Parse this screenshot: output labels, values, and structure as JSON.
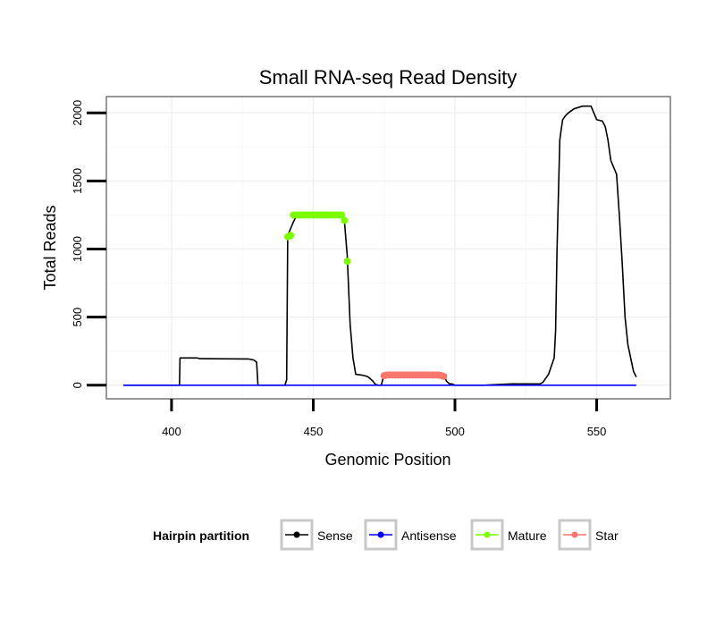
{
  "chart_data": {
    "type": "line",
    "title": "Small RNA-seq Read Density",
    "xlabel": "Genomic Position",
    "ylabel": "Total Reads",
    "xlim": [
      377,
      576
    ],
    "ylim": [
      -100,
      2120
    ],
    "xticks": [
      400,
      450,
      500,
      550
    ],
    "yticks": [
      0,
      500,
      1000,
      1500,
      2000
    ],
    "legend": {
      "title": "Hairpin partition",
      "position": "bottom",
      "entries": [
        {
          "name": "Sense",
          "color": "#000000"
        },
        {
          "name": "Antisense",
          "color": "#0000ff"
        },
        {
          "name": "Mature",
          "color": "#7cfc00"
        },
        {
          "name": "Star",
          "color": "#f8766d"
        }
      ]
    },
    "series": [
      {
        "name": "Sense",
        "color": "#000000",
        "style": "line",
        "points": [
          [
            383,
            0
          ],
          [
            402.8,
            0
          ],
          [
            403,
            200
          ],
          [
            409,
            200
          ],
          [
            410,
            195
          ],
          [
            427,
            193
          ],
          [
            429,
            185
          ],
          [
            430,
            170
          ],
          [
            430.5,
            0
          ],
          [
            440,
            0
          ],
          [
            440.6,
            40
          ],
          [
            441,
            1100
          ],
          [
            443,
            1200
          ],
          [
            444,
            1240
          ],
          [
            460,
            1240
          ],
          [
            461,
            1200
          ],
          [
            462,
            950
          ],
          [
            463,
            450
          ],
          [
            464,
            200
          ],
          [
            465,
            80
          ],
          [
            467,
            75
          ],
          [
            469,
            65
          ],
          [
            470,
            50
          ],
          [
            471,
            30
          ],
          [
            472,
            5
          ],
          [
            473,
            0
          ],
          [
            474,
            0
          ],
          [
            475,
            80
          ],
          [
            496,
            80
          ],
          [
            497,
            30
          ],
          [
            498,
            10
          ],
          [
            499,
            10
          ],
          [
            500,
            0
          ],
          [
            510,
            0
          ],
          [
            520,
            10
          ],
          [
            530,
            10
          ],
          [
            531,
            20
          ],
          [
            533,
            80
          ],
          [
            534,
            140
          ],
          [
            535,
            200
          ],
          [
            535.5,
            400
          ],
          [
            536,
            1000
          ],
          [
            537,
            1800
          ],
          [
            537.5,
            1880
          ],
          [
            538,
            1950
          ],
          [
            539,
            1980
          ],
          [
            540,
            2000
          ],
          [
            542,
            2030
          ],
          [
            545,
            2050
          ],
          [
            548,
            2050
          ],
          [
            549,
            2000
          ],
          [
            550,
            1950
          ],
          [
            552,
            1940
          ],
          [
            553,
            1900
          ],
          [
            554,
            1800
          ],
          [
            555,
            1650
          ],
          [
            556,
            1600
          ],
          [
            557,
            1550
          ],
          [
            558,
            1250
          ],
          [
            559,
            900
          ],
          [
            560,
            500
          ],
          [
            561,
            300
          ],
          [
            562,
            200
          ],
          [
            563,
            100
          ],
          [
            564,
            60
          ]
        ]
      },
      {
        "name": "Antisense",
        "color": "#0000ff",
        "style": "line",
        "points": [
          [
            383,
            0
          ],
          [
            564,
            0
          ]
        ]
      },
      {
        "name": "Mature",
        "color": "#7cfc00",
        "style": "points",
        "x": [
          441,
          442,
          443,
          444,
          445,
          446,
          447,
          448,
          449,
          450,
          451,
          452,
          453,
          454,
          455,
          456,
          457,
          458,
          459,
          460,
          461,
          462
        ],
        "y": [
          1090,
          1100,
          1250,
          1250,
          1250,
          1250,
          1250,
          1250,
          1250,
          1250,
          1250,
          1250,
          1250,
          1250,
          1250,
          1250,
          1250,
          1250,
          1250,
          1250,
          1210,
          910
        ]
      },
      {
        "name": "Star",
        "color": "#f8766d",
        "style": "points",
        "x": [
          475,
          476,
          477,
          478,
          479,
          480,
          481,
          482,
          483,
          484,
          485,
          486,
          487,
          488,
          489,
          490,
          491,
          492,
          493,
          494,
          495,
          496
        ],
        "y": [
          70,
          75,
          75,
          75,
          75,
          75,
          75,
          75,
          75,
          75,
          75,
          75,
          75,
          75,
          75,
          75,
          75,
          75,
          75,
          75,
          72,
          65
        ]
      }
    ]
  }
}
